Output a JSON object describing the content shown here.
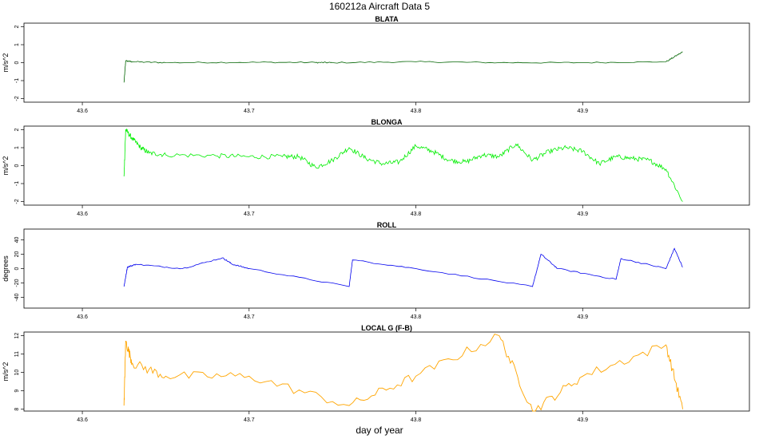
{
  "figure": {
    "title": "160212a   Aircraft Data 5",
    "xlabel": "day of year"
  },
  "chart_data": [
    {
      "type": "line",
      "title": "BLATA",
      "ylabel": "m/s^2",
      "color": "#006400",
      "xlim": [
        43.565,
        44.0
      ],
      "ylim": [
        -2.2,
        2.2
      ],
      "xticks": [
        "43.6",
        "43.7",
        "43.8",
        "43.9"
      ],
      "yticks": [
        "-2",
        "-1",
        "0",
        "1",
        "2"
      ],
      "series": [
        {
          "x": [
            43.625,
            43.626,
            43.63,
            43.65,
            43.7,
            43.74,
            43.75,
            43.8,
            43.85,
            43.9,
            43.95,
            43.96
          ],
          "y": [
            -1.1,
            0.1,
            0.05,
            0.0,
            0.02,
            0.01,
            0.0,
            0.05,
            0.0,
            0.0,
            0.05,
            0.6
          ]
        }
      ]
    },
    {
      "type": "line",
      "title": "BLONGA",
      "ylabel": "m/s^2",
      "color": "#00ee00",
      "xlim": [
        43.565,
        44.0
      ],
      "ylim": [
        -2.2,
        2.2
      ],
      "xticks": [
        "43.6",
        "43.7",
        "43.8",
        "43.9"
      ],
      "yticks": [
        "-2",
        "-1",
        "0",
        "1",
        "2"
      ],
      "series": [
        {
          "x": [
            43.625,
            43.626,
            43.63,
            43.635,
            43.64,
            43.65,
            43.68,
            43.7,
            43.72,
            43.73,
            43.74,
            43.75,
            43.76,
            43.77,
            43.78,
            43.79,
            43.8,
            43.81,
            43.82,
            43.83,
            43.84,
            43.85,
            43.86,
            43.87,
            43.88,
            43.89,
            43.9,
            43.91,
            43.92,
            43.93,
            43.94,
            43.95,
            43.96
          ],
          "y": [
            -0.6,
            2.0,
            1.5,
            1.0,
            0.7,
            0.6,
            0.55,
            0.5,
            0.5,
            0.5,
            -0.1,
            0.3,
            1.0,
            0.4,
            0.1,
            0.2,
            1.1,
            0.8,
            0.3,
            0.2,
            0.6,
            0.5,
            1.2,
            0.3,
            0.8,
            1.0,
            0.8,
            0.1,
            0.5,
            0.4,
            0.3,
            -0.2,
            -2.0
          ]
        }
      ]
    },
    {
      "type": "line",
      "title": "ROLL",
      "ylabel": "degrees",
      "color": "#0000ee",
      "xlim": [
        43.565,
        44.0
      ],
      "ylim": [
        -55,
        55
      ],
      "xticks": [
        "43.6",
        "43.7",
        "43.8",
        "43.9"
      ],
      "yticks": [
        "-40",
        "-20",
        "0",
        "20",
        "40"
      ],
      "series": [
        {
          "x": [
            43.625,
            43.627,
            43.632,
            43.66,
            43.684,
            43.69,
            43.7,
            43.76,
            43.762,
            43.8,
            43.87,
            43.875,
            43.885,
            43.92,
            43.923,
            43.95,
            43.955,
            43.96
          ],
          "y": [
            -25,
            2,
            6,
            0,
            15,
            6,
            0,
            -25,
            12,
            0,
            -25,
            20,
            0,
            -15,
            14,
            0,
            28,
            2
          ]
        }
      ]
    },
    {
      "type": "line",
      "title": "LOCAL G (F-B)",
      "ylabel": "m/s^2",
      "color": "#ffa500",
      "xlim": [
        43.565,
        44.0
      ],
      "ylim": [
        7.9,
        12.2
      ],
      "xticks": [
        "43.6",
        "43.7",
        "43.8",
        "43.9"
      ],
      "yticks": [
        "8",
        "9",
        "10",
        "11",
        "12"
      ],
      "series": [
        {
          "x": [
            43.625,
            43.626,
            43.63,
            43.65,
            43.7,
            43.76,
            43.8,
            43.85,
            43.87,
            43.9,
            43.95,
            43.96
          ],
          "y": [
            8.2,
            11.7,
            10.5,
            9.8,
            9.8,
            8.2,
            9.8,
            12.0,
            7.9,
            9.8,
            11.5,
            8.0
          ]
        }
      ]
    }
  ]
}
